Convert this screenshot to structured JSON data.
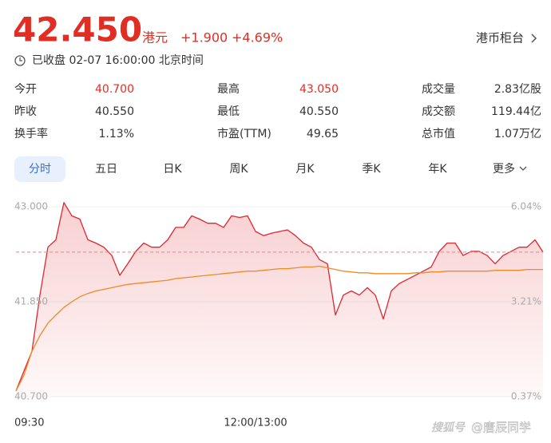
{
  "header": {
    "price": "42.450",
    "currency": "港元",
    "change": "+1.900",
    "change_pct": "+4.69%",
    "counter": "港币柜台",
    "status": "已收盘 02-07 16:00:00 北京时间"
  },
  "stats": [
    [
      {
        "label": "今开",
        "value": "40.700",
        "color": "#e02e24"
      },
      {
        "label": "最高",
        "value": "43.050",
        "color": "#e02e24"
      },
      {
        "label": "成交量",
        "value": "2.83亿股"
      }
    ],
    [
      {
        "label": "昨收",
        "value": "40.550"
      },
      {
        "label": "最低",
        "value": "40.550"
      },
      {
        "label": "成交额",
        "value": "119.44亿"
      }
    ],
    [
      {
        "label": "换手率",
        "value": "1.13%"
      },
      {
        "label": "市盈(TTM)",
        "value": "49.65"
      },
      {
        "label": "总市值",
        "value": "1.07万亿"
      }
    ]
  ],
  "tabs": [
    "分时",
    "五日",
    "日K",
    "周K",
    "月K",
    "季K",
    "年K",
    "更多"
  ],
  "selected_tab": 0,
  "watermark": [
    "搜狐号",
    "@唐辰同学"
  ],
  "chart": {
    "type": "line",
    "x": [
      0,
      5,
      10,
      15,
      20,
      25,
      30,
      35,
      40,
      45,
      50,
      55,
      60,
      65,
      70,
      75,
      80,
      85,
      90,
      95,
      100,
      105,
      110,
      115,
      120,
      125,
      130,
      135,
      140,
      145,
      150,
      155,
      160,
      165,
      170,
      175,
      180,
      185,
      190,
      195,
      200,
      205,
      210,
      215,
      220,
      225,
      230,
      235,
      240,
      245,
      250,
      255,
      260,
      265,
      270,
      275,
      280,
      285,
      290,
      295,
      300,
      305,
      310,
      315,
      320,
      325,
      330
    ],
    "xlim": [
      0,
      330
    ],
    "xticks": [
      {
        "value": 0,
        "label": "09:30"
      },
      {
        "value": 150,
        "label": "12:00/13:00"
      }
    ],
    "ylim": [
      40.7,
      43
    ],
    "yticks": [
      {
        "value": 40.7,
        "label": "40.700"
      },
      {
        "value": 41.85,
        "label": "41.850"
      },
      {
        "value": 43,
        "label": "43.000"
      }
    ],
    "y2lim": [
      0.37,
      6.04
    ],
    "y2ticks": [
      {
        "value": 0.37,
        "label": "0.37%"
      },
      {
        "value": 3.21,
        "label": "3.21%"
      },
      {
        "value": 6.04,
        "label": "6.04%"
      }
    ],
    "series": [
      {
        "color": "#e0262f",
        "fill": true,
        "values": [
          40.77,
          41.01,
          41.25,
          41.93,
          42.51,
          42.6,
          43.05,
          42.89,
          42.85,
          42.6,
          42.56,
          42.51,
          42.41,
          42.17,
          42.31,
          42.46,
          42.56,
          42.51,
          42.51,
          42.6,
          42.75,
          42.75,
          42.89,
          42.85,
          42.8,
          42.8,
          42.75,
          42.89,
          42.87,
          42.89,
          42.7,
          42.65,
          42.68,
          42.7,
          42.72,
          42.65,
          42.56,
          42.51,
          42.36,
          42.31,
          41.69,
          41.93,
          41.98,
          41.93,
          42.02,
          41.93,
          41.64,
          41.98,
          42.07,
          42.12,
          42.17,
          42.22,
          42.27,
          42.46,
          42.56,
          42.56,
          42.41,
          42.46,
          42.46,
          42.41,
          42.31,
          42.41,
          42.46,
          42.51,
          42.51,
          42.6,
          42.45
        ]
      },
      {
        "color": "#f08a24",
        "fill": false,
        "values": [
          40.77,
          40.96,
          41.25,
          41.44,
          41.59,
          41.69,
          41.78,
          41.85,
          41.91,
          41.95,
          41.98,
          42.0,
          42.02,
          42.04,
          42.06,
          42.07,
          42.08,
          42.09,
          42.1,
          42.11,
          42.13,
          42.14,
          42.15,
          42.16,
          42.17,
          42.18,
          42.19,
          42.2,
          42.21,
          42.22,
          42.22,
          42.23,
          42.24,
          42.25,
          42.25,
          42.26,
          42.27,
          42.27,
          42.28,
          42.26,
          42.24,
          42.22,
          42.21,
          42.2,
          42.2,
          42.19,
          42.19,
          42.19,
          42.19,
          42.19,
          42.2,
          42.2,
          42.21,
          42.21,
          42.22,
          42.22,
          42.22,
          42.22,
          42.22,
          42.22,
          42.23,
          42.23,
          42.23,
          42.23,
          42.24,
          42.24,
          42.24
        ]
      }
    ],
    "last_price_line": true,
    "grid": true
  }
}
